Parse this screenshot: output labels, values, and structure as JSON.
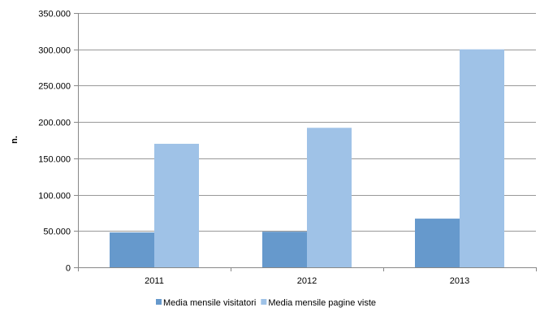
{
  "chart_data": {
    "type": "bar",
    "title": "",
    "xlabel": "",
    "ylabel": "n.",
    "categories": [
      "2011",
      "2012",
      "2013"
    ],
    "series": [
      {
        "name": "Media mensile visitatori",
        "values": [
          48000,
          49000,
          67000
        ],
        "color": "#6699CC"
      },
      {
        "name": "Media mensile pagine viste",
        "values": [
          170000,
          192000,
          300000
        ],
        "color": "#9FC2E7"
      }
    ],
    "ylim": [
      0,
      350000
    ],
    "yticks": [
      0,
      50000,
      100000,
      150000,
      200000,
      250000,
      300000,
      350000
    ],
    "ytick_labels": [
      "0",
      "50.000",
      "100.000",
      "150.000",
      "200.000",
      "250.000",
      "300.000",
      "350.000"
    ],
    "grid": true,
    "legend_position": "bottom",
    "gridline_color": "#999999"
  }
}
